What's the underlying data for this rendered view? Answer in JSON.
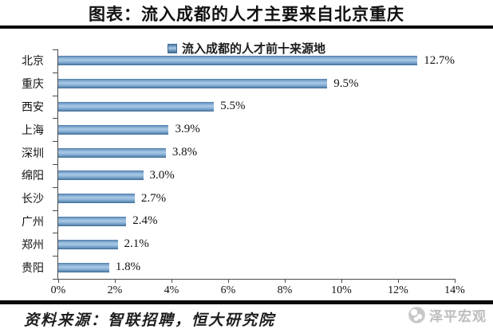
{
  "header": {
    "title": "图表：流入成都的人才主要来自北京重庆"
  },
  "chart_data": {
    "type": "bar",
    "orientation": "horizontal",
    "title": "流入成都的人才前十来源地",
    "legend_position": "top",
    "grid": false,
    "categories": [
      "北京",
      "重庆",
      "西安",
      "上海",
      "深圳",
      "绵阳",
      "长沙",
      "广州",
      "郑州",
      "贵阳"
    ],
    "values": [
      12.7,
      9.5,
      5.5,
      3.9,
      3.8,
      3.0,
      2.7,
      2.4,
      2.1,
      1.8
    ],
    "value_labels": [
      "12.7%",
      "9.5%",
      "5.5%",
      "3.9%",
      "3.8%",
      "3.0%",
      "2.7%",
      "2.4%",
      "2.1%",
      "1.8%"
    ],
    "xlim": [
      0,
      14
    ],
    "x_tick_labels": [
      "0%",
      "2%",
      "4%",
      "6%",
      "8%",
      "10%",
      "12%",
      "14%"
    ]
  },
  "footer": {
    "source": "资料来源：智联招聘，恒大研究院",
    "watermark": "泽平宏观"
  },
  "colors": {
    "bar_top": "#4d7ba8",
    "bar_highlight": "#a9c9e5",
    "bar_mid": "#96bbdd",
    "bar_low": "#6e99c2",
    "bar_bottom": "#3f6b96",
    "axis": "#4a4a4a",
    "rule": "#0a0a0a",
    "watermark_gray": "#bdbdbd"
  }
}
